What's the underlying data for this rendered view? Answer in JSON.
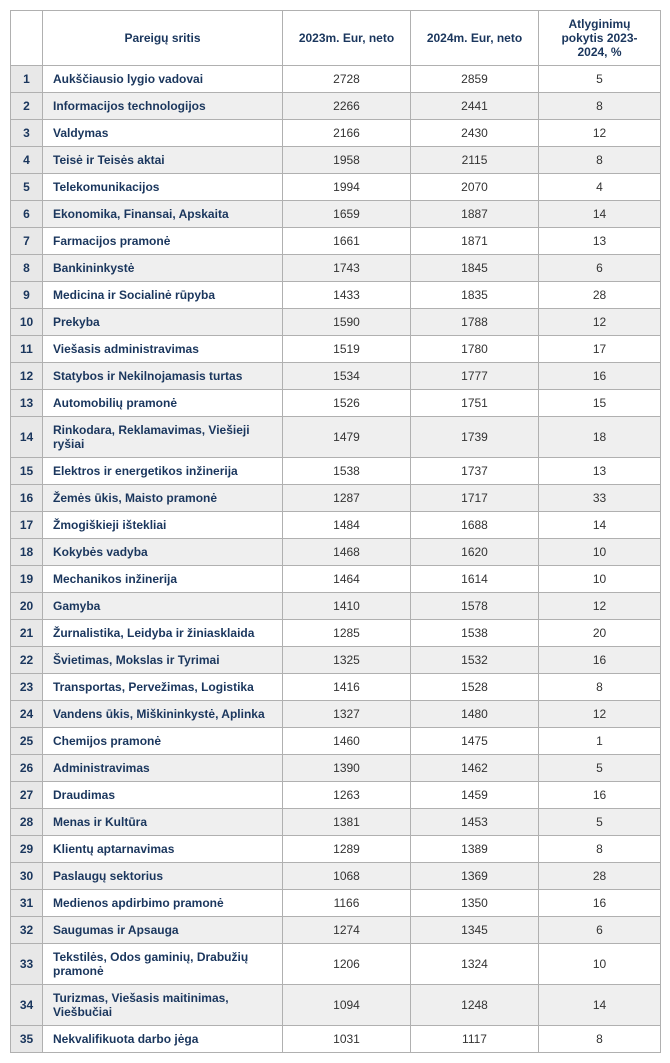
{
  "table": {
    "columns": [
      "",
      "Pareigų sritis",
      "2023m. Eur, neto",
      "2024m. Eur, neto",
      "Atlyginimų pokytis 2023-2024, %"
    ],
    "rows": [
      {
        "idx": "1",
        "name": "Aukščiausio lygio vadovai",
        "y2023": "2728",
        "y2024": "2859",
        "pct": "5"
      },
      {
        "idx": "2",
        "name": "Informacijos technologijos",
        "y2023": "2266",
        "y2024": "2441",
        "pct": "8"
      },
      {
        "idx": "3",
        "name": "Valdymas",
        "y2023": "2166",
        "y2024": "2430",
        "pct": "12"
      },
      {
        "idx": "4",
        "name": "Teisė ir Teisės aktai",
        "y2023": "1958",
        "y2024": "2115",
        "pct": "8"
      },
      {
        "idx": "5",
        "name": "Telekomunikacijos",
        "y2023": "1994",
        "y2024": "2070",
        "pct": "4"
      },
      {
        "idx": "6",
        "name": "Ekonomika, Finansai, Apskaita",
        "y2023": "1659",
        "y2024": "1887",
        "pct": "14"
      },
      {
        "idx": "7",
        "name": "Farmacijos pramonė",
        "y2023": "1661",
        "y2024": "1871",
        "pct": "13"
      },
      {
        "idx": "8",
        "name": "Bankininkystė",
        "y2023": "1743",
        "y2024": "1845",
        "pct": "6"
      },
      {
        "idx": "9",
        "name": "Medicina ir Socialinė rūpyba",
        "y2023": "1433",
        "y2024": "1835",
        "pct": "28"
      },
      {
        "idx": "10",
        "name": "Prekyba",
        "y2023": "1590",
        "y2024": "1788",
        "pct": "12"
      },
      {
        "idx": "11",
        "name": "Viešasis administravimas",
        "y2023": "1519",
        "y2024": "1780",
        "pct": "17"
      },
      {
        "idx": "12",
        "name": "Statybos ir Nekilnojamasis turtas",
        "y2023": "1534",
        "y2024": "1777",
        "pct": "16"
      },
      {
        "idx": "13",
        "name": "Automobilių pramonė",
        "y2023": "1526",
        "y2024": "1751",
        "pct": "15"
      },
      {
        "idx": "14",
        "name": "Rinkodara, Reklamavimas, Viešieji ryšiai",
        "y2023": "1479",
        "y2024": "1739",
        "pct": "18"
      },
      {
        "idx": "15",
        "name": "Elektros ir energetikos inžinerija",
        "y2023": "1538",
        "y2024": "1737",
        "pct": "13"
      },
      {
        "idx": "16",
        "name": "Žemės ūkis, Maisto pramonė",
        "y2023": "1287",
        "y2024": "1717",
        "pct": "33"
      },
      {
        "idx": "17",
        "name": "Žmogiškieji ištekliai",
        "y2023": "1484",
        "y2024": "1688",
        "pct": "14"
      },
      {
        "idx": "18",
        "name": "Kokybės vadyba",
        "y2023": "1468",
        "y2024": "1620",
        "pct": "10"
      },
      {
        "idx": "19",
        "name": "Mechanikos inžinerija",
        "y2023": "1464",
        "y2024": "1614",
        "pct": "10"
      },
      {
        "idx": "20",
        "name": "Gamyba",
        "y2023": "1410",
        "y2024": "1578",
        "pct": "12"
      },
      {
        "idx": "21",
        "name": "Žurnalistika, Leidyba ir žiniasklaida",
        "y2023": "1285",
        "y2024": "1538",
        "pct": "20"
      },
      {
        "idx": "22",
        "name": "Švietimas, Mokslas ir Tyrimai",
        "y2023": "1325",
        "y2024": "1532",
        "pct": "16"
      },
      {
        "idx": "23",
        "name": "Transportas, Pervežimas, Logistika",
        "y2023": "1416",
        "y2024": "1528",
        "pct": "8"
      },
      {
        "idx": "24",
        "name": "Vandens ūkis, Miškininkystė, Aplinka",
        "y2023": "1327",
        "y2024": "1480",
        "pct": "12"
      },
      {
        "idx": "25",
        "name": "Chemijos pramonė",
        "y2023": "1460",
        "y2024": "1475",
        "pct": "1"
      },
      {
        "idx": "26",
        "name": "Administravimas",
        "y2023": "1390",
        "y2024": "1462",
        "pct": "5"
      },
      {
        "idx": "27",
        "name": "Draudimas",
        "y2023": "1263",
        "y2024": "1459",
        "pct": "16"
      },
      {
        "idx": "28",
        "name": "Menas ir Kultūra",
        "y2023": "1381",
        "y2024": "1453",
        "pct": "5"
      },
      {
        "idx": "29",
        "name": "Klientų aptarnavimas",
        "y2023": "1289",
        "y2024": "1389",
        "pct": "8"
      },
      {
        "idx": "30",
        "name": "Paslaugų sektorius",
        "y2023": "1068",
        "y2024": "1369",
        "pct": "28"
      },
      {
        "idx": "31",
        "name": "Medienos apdirbimo pramonė",
        "y2023": "1166",
        "y2024": "1350",
        "pct": "16"
      },
      {
        "idx": "32",
        "name": "Saugumas ir Apsauga",
        "y2023": "1274",
        "y2024": "1345",
        "pct": "6"
      },
      {
        "idx": "33",
        "name": "Tekstilės, Odos gaminių, Drabužių pramonė",
        "y2023": "1206",
        "y2024": "1324",
        "pct": "10"
      },
      {
        "idx": "34",
        "name": "Turizmas, Viešasis maitinimas, Viešbučiai",
        "y2023": "1094",
        "y2024": "1248",
        "pct": "14"
      },
      {
        "idx": "35",
        "name": "Nekvalifikuota darbo jėga",
        "y2023": "1031",
        "y2024": "1117",
        "pct": "8"
      }
    ]
  }
}
